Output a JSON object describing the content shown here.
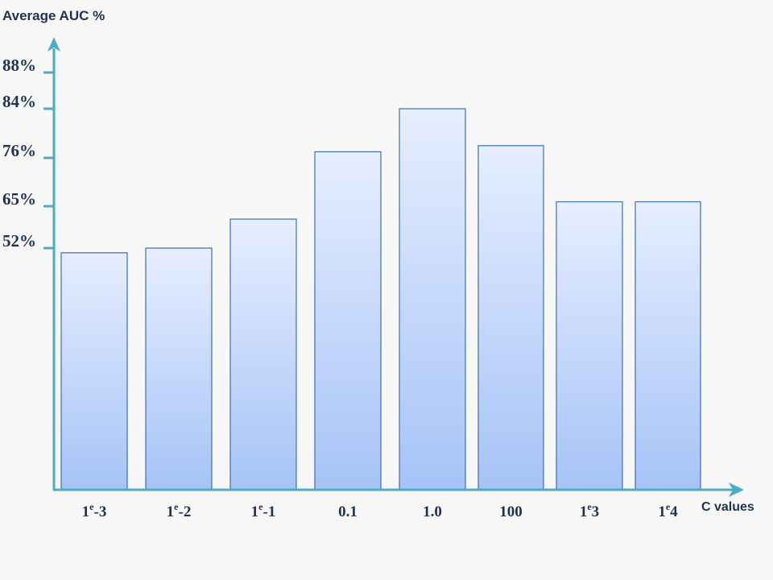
{
  "chart_data": {
    "type": "bar",
    "ylabel": "Average  AUC %",
    "xlabel": "C  values",
    "categories": [
      {
        "base": "1",
        "sup": "e",
        "rest": "-3"
      },
      {
        "base": "1",
        "sup": "e",
        "rest": "-2"
      },
      {
        "base": "1",
        "sup": "e",
        "rest": "-1"
      },
      {
        "base": "0.1",
        "sup": "",
        "rest": ""
      },
      {
        "base": "1.0",
        "sup": "",
        "rest": ""
      },
      {
        "base": "100",
        "sup": "",
        "rest": ""
      },
      {
        "base": "1",
        "sup": "e",
        "rest": "3"
      },
      {
        "base": "1",
        "sup": "e",
        "rest": "4"
      }
    ],
    "values": [
      51,
      52,
      61,
      77,
      84,
      78,
      66,
      66
    ],
    "yticks": [
      {
        "value": 52,
        "label": "52%"
      },
      {
        "value": 65,
        "label": "65%"
      },
      {
        "value": 76,
        "label": "76%"
      },
      {
        "value": 84,
        "label": "84%"
      },
      {
        "value": 88,
        "label": "88%"
      }
    ],
    "grid": false,
    "colors": {
      "bar_top": "#e6eeff",
      "bar_bottom": "#a6c3f7",
      "bar_border": "#3f6fae",
      "axis": "#4bacc6",
      "text": "#1f3350"
    }
  }
}
